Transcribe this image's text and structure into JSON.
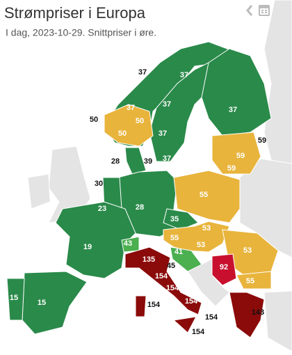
{
  "header": {
    "title": "Strømpriser i Europa",
    "subtitle": "I dag, 2023-10-29. Snittpriser i øre."
  },
  "map": {
    "labels": [
      37,
      37,
      37,
      37,
      37,
      50,
      50,
      50,
      37,
      59,
      59,
      28,
      39,
      37,
      59,
      30,
      55,
      28,
      23,
      35,
      53,
      19,
      43,
      55,
      53,
      53,
      41,
      135,
      45,
      92,
      55,
      154,
      154,
      15,
      15,
      154,
      154,
      143,
      154,
      154
    ]
  }
}
